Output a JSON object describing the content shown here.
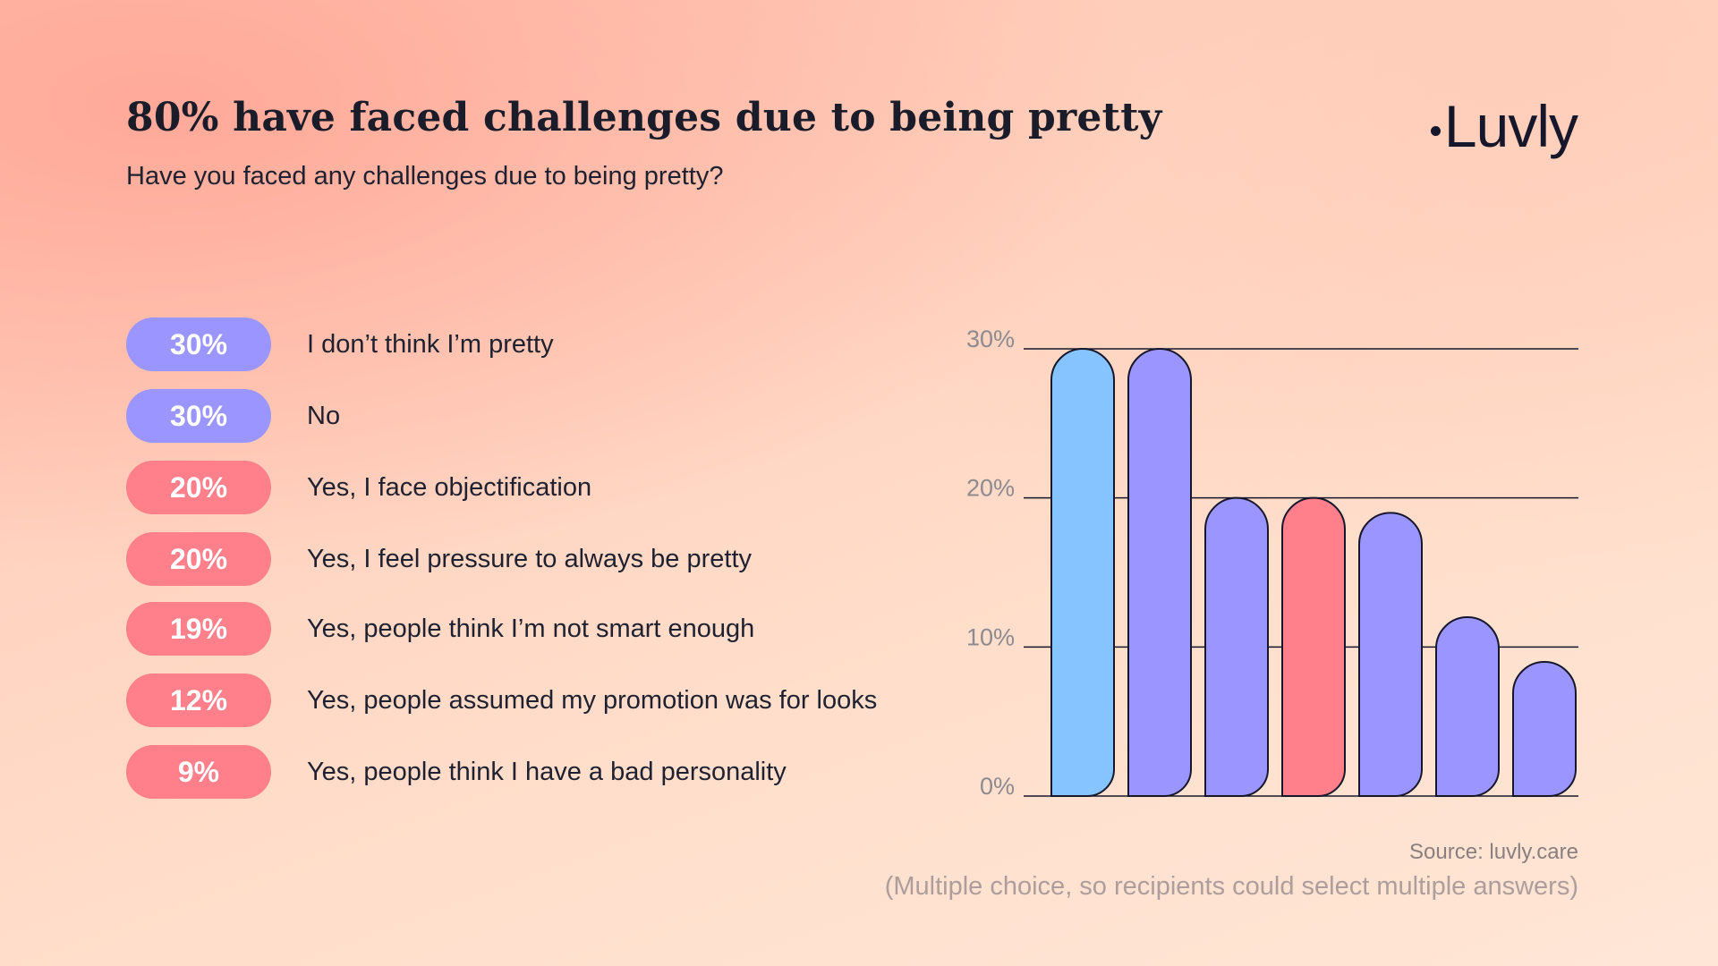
{
  "header": {
    "title": "80% have faced challenges due to being pretty",
    "subtitle": "Have you faced any challenges due to being pretty?"
  },
  "logo": {
    "text": "Luvly"
  },
  "legend": {
    "items": [
      {
        "value_label": "30%",
        "label": "I don’t think I’m pretty",
        "pill_color": "#9b96ff"
      },
      {
        "value_label": "30%",
        "label": "No",
        "pill_color": "#9b96ff"
      },
      {
        "value_label": "20%",
        "label": "Yes, I face objectification",
        "pill_color": "#ff7f8b"
      },
      {
        "value_label": "20%",
        "label": "Yes, I feel pressure to always be pretty",
        "pill_color": "#ff7f8b"
      },
      {
        "value_label": "19%",
        "label": "Yes, people think I’m not smart enough",
        "pill_color": "#ff7f8b"
      },
      {
        "value_label": "12%",
        "label": "Yes, people assumed my promotion was for looks",
        "pill_color": "#ff7f8b"
      },
      {
        "value_label": "9%",
        "label": "Yes, people think I have a bad personality",
        "pill_color": "#ff7f8b"
      }
    ]
  },
  "chart_data": {
    "type": "bar",
    "categories": [
      "I don’t think I’m pretty",
      "No",
      "Yes, I face objectification",
      "Yes, I feel pressure to always be pretty",
      "Yes, people think I’m not smart enough",
      "Yes, people assumed my promotion was for looks",
      "Yes, people think I have a bad personality"
    ],
    "values": [
      30,
      30,
      20,
      20,
      19,
      12,
      9
    ],
    "bar_colors": [
      "#85c4ff",
      "#9b96ff",
      "#9b96ff",
      "#ff7f8b",
      "#9b96ff",
      "#9b96ff",
      "#9b96ff"
    ],
    "yticks": [
      "0%",
      "10%",
      "20%",
      "30%"
    ],
    "ytick_values": [
      0,
      10,
      20,
      30
    ],
    "ylim": [
      0,
      30
    ],
    "grid": true,
    "title": "",
    "xlabel": "",
    "ylabel": ""
  },
  "footer": {
    "source": "Source: luvly.care",
    "note": "(Multiple choice, so recipients could select multiple answers)"
  },
  "colors": {
    "outline": "#16172a",
    "grid": "#16172a",
    "tick_text": "#8d8a90"
  }
}
